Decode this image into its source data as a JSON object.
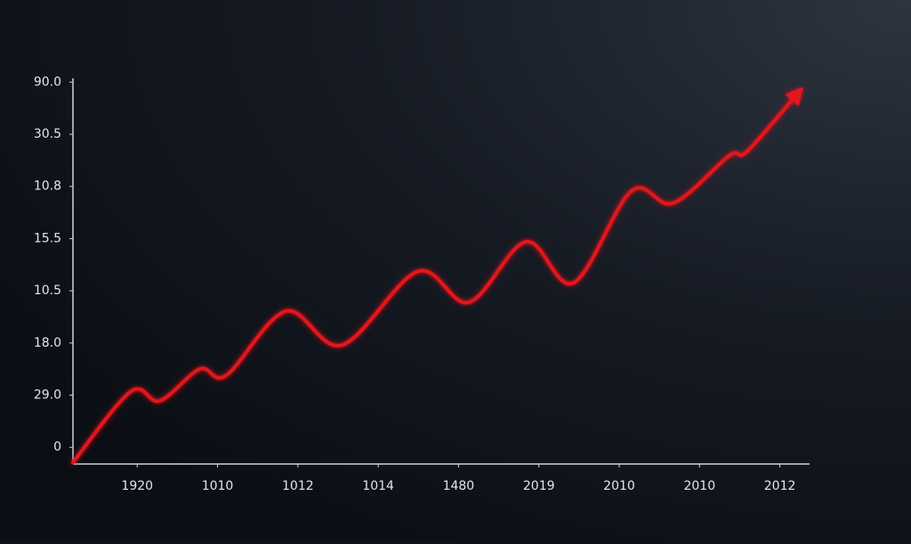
{
  "chart_data": {
    "type": "line",
    "x": [
      -0.8,
      -0.08,
      0.28,
      0.78,
      1.11,
      1.85,
      2.55,
      3.49,
      4.13,
      4.84,
      5.43,
      6.15,
      6.67,
      7.37,
      7.59,
      8.22
    ],
    "values": [
      -0.29,
      1.07,
      0.89,
      1.5,
      1.38,
      2.61,
      1.96,
      3.37,
      2.78,
      3.94,
      3.15,
      4.91,
      4.68,
      5.59,
      5.67,
      6.78
    ],
    "color": "#e3131d",
    "xlim": [
      -0.8,
      8.37
    ],
    "xticks": [
      {
        "value": 0,
        "label": "1920"
      },
      {
        "value": 1,
        "label": "1010"
      },
      {
        "value": 2,
        "label": "1012"
      },
      {
        "value": 3,
        "label": "1014"
      },
      {
        "value": 4,
        "label": "1480"
      },
      {
        "value": 5,
        "label": "2019"
      },
      {
        "value": 6,
        "label": "2010"
      },
      {
        "value": 7,
        "label": "2010"
      },
      {
        "value": 8,
        "label": "2012"
      }
    ],
    "ylim": [
      -0.32,
      7.04
    ],
    "yticks": [
      0,
      {
        "value": 1,
        "label": "29.0"
      },
      {
        "value": 2,
        "label": "18.0"
      },
      {
        "value": 3,
        "label": "10.5"
      },
      {
        "value": 4,
        "label": "15.5"
      },
      {
        "value": 5,
        "label": "10.8"
      },
      {
        "value": 6,
        "label": "30.5"
      },
      {
        "value": 7,
        "label": "90.0"
      }
    ]
  }
}
